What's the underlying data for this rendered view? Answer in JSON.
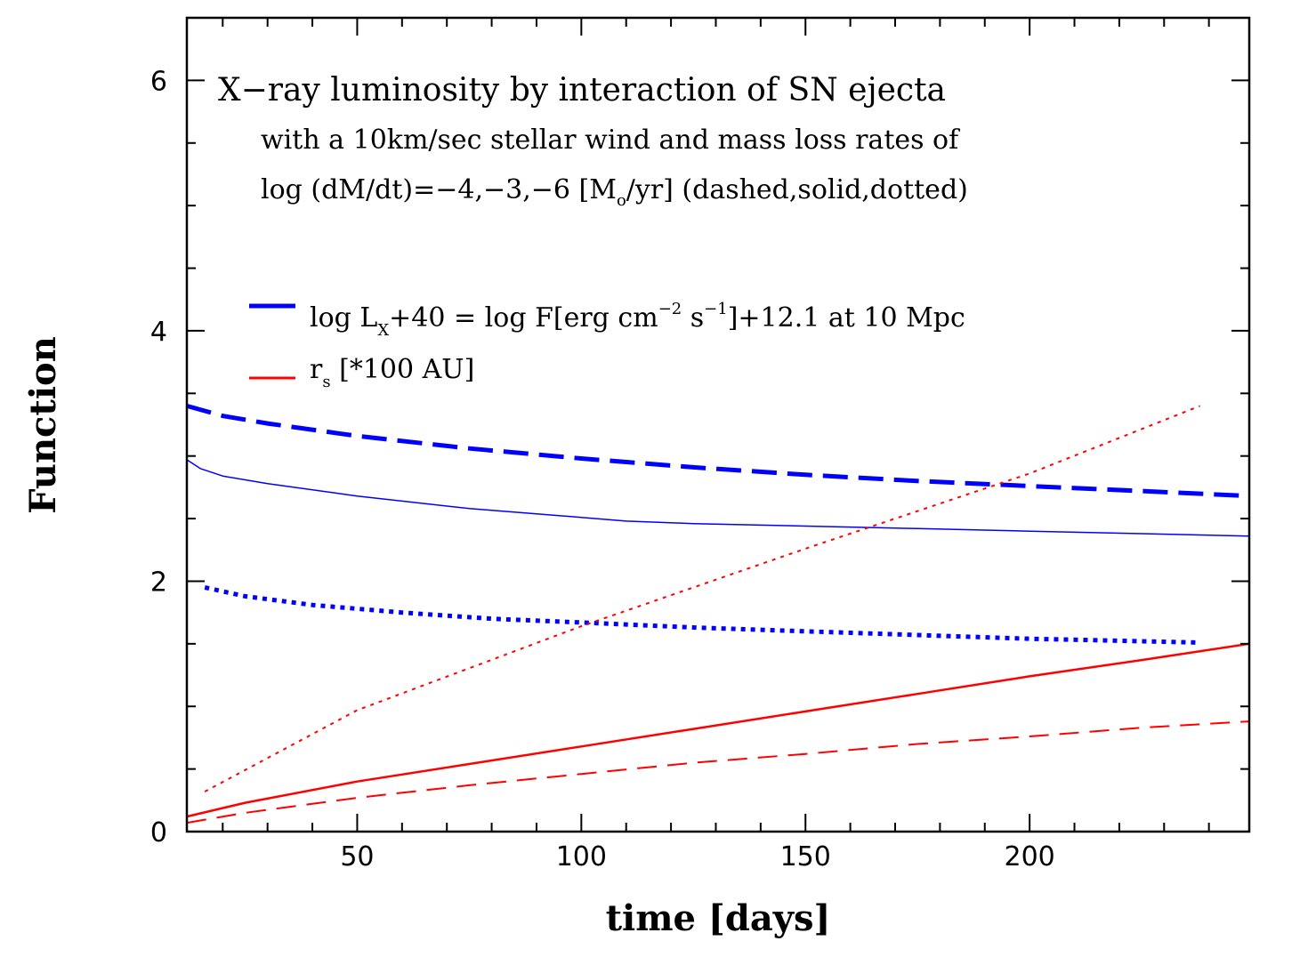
{
  "chart_data": {
    "type": "line",
    "title": "X−ray luminosity by interaction of SN ejecta",
    "subtitle_1": "with a 10km/sec stellar wind and mass loss rates of",
    "subtitle_2_prefix": "log (dM/dt)=−4,−3,−6 [M",
    "subtitle_2_sub": "o",
    "subtitle_2_suffix": "/yr] (dashed,solid,dotted)",
    "xlabel": "time [days]",
    "ylabel": "Function",
    "xlim": [
      12,
      249
    ],
    "ylim": [
      0,
      6.5
    ],
    "x_ticks": [
      "50",
      "100",
      "150",
      "200"
    ],
    "y_ticks": [
      "0",
      "2",
      "4",
      "6"
    ],
    "legend": {
      "blue": {
        "color": "#0000ff",
        "part1": "log L",
        "sub1": "X",
        "part2": "+40 = log F[erg cm",
        "sup1": "−2",
        "part3": " s",
        "sup2": "−1",
        "part4": "]+12.1 at 10 Mpc"
      },
      "red": {
        "color": "#ff0000",
        "part1": "r",
        "sub1": "s",
        "part2": " [*100 AU]"
      }
    },
    "series": [
      {
        "name": "log Lx+40, dM/dt=1e-4 (dashed)",
        "color": "#0000ff",
        "style": "dashed",
        "width": 5,
        "x": [
          12,
          20,
          30,
          50,
          75,
          100,
          125,
          150,
          175,
          200,
          225,
          249
        ],
        "y": [
          3.4,
          3.32,
          3.26,
          3.16,
          3.06,
          2.98,
          2.91,
          2.85,
          2.8,
          2.76,
          2.72,
          2.68
        ]
      },
      {
        "name": "log Lx+40, dM/dt=1e-3 (solid)",
        "color": "#0000ff",
        "style": "solid",
        "width": 1.5,
        "x": [
          12,
          15,
          20,
          30,
          50,
          75,
          100,
          110,
          125,
          150,
          175,
          200,
          225,
          249
        ],
        "y": [
          2.97,
          2.9,
          2.84,
          2.78,
          2.68,
          2.58,
          2.51,
          2.48,
          2.46,
          2.44,
          2.42,
          2.4,
          2.38,
          2.36
        ]
      },
      {
        "name": "log Lx+40, dM/dt=1e-6 (dotted)",
        "color": "#0000ff",
        "style": "dotted",
        "width": 5,
        "x": [
          16,
          25,
          40,
          60,
          80,
          100,
          125,
          150,
          175,
          200,
          225,
          237
        ],
        "y": [
          1.95,
          1.88,
          1.81,
          1.75,
          1.7,
          1.67,
          1.63,
          1.6,
          1.57,
          1.54,
          1.52,
          1.51
        ]
      },
      {
        "name": "rs, dM/dt=1e-4 (dashed)",
        "color": "#ff0000",
        "style": "dashed",
        "width": 2,
        "x": [
          12,
          25,
          50,
          75,
          100,
          125,
          150,
          175,
          200,
          225,
          249
        ],
        "y": [
          0.07,
          0.15,
          0.27,
          0.37,
          0.46,
          0.55,
          0.62,
          0.7,
          0.76,
          0.83,
          0.88
        ]
      },
      {
        "name": "rs, dM/dt=1e-3 (solid)",
        "color": "#ff0000",
        "style": "solid",
        "width": 2.5,
        "x": [
          12,
          25,
          50,
          75,
          100,
          125,
          150,
          175,
          200,
          225,
          249
        ],
        "y": [
          0.12,
          0.23,
          0.4,
          0.54,
          0.68,
          0.82,
          0.96,
          1.1,
          1.24,
          1.37,
          1.5
        ]
      },
      {
        "name": "rs, dM/dt=1e-6 (dotted)",
        "color": "#ff0000",
        "style": "dotted",
        "width": 2,
        "x": [
          16,
          50,
          100,
          150,
          200,
          238
        ],
        "y": [
          0.32,
          0.97,
          1.64,
          2.26,
          2.86,
          3.4
        ]
      }
    ]
  }
}
